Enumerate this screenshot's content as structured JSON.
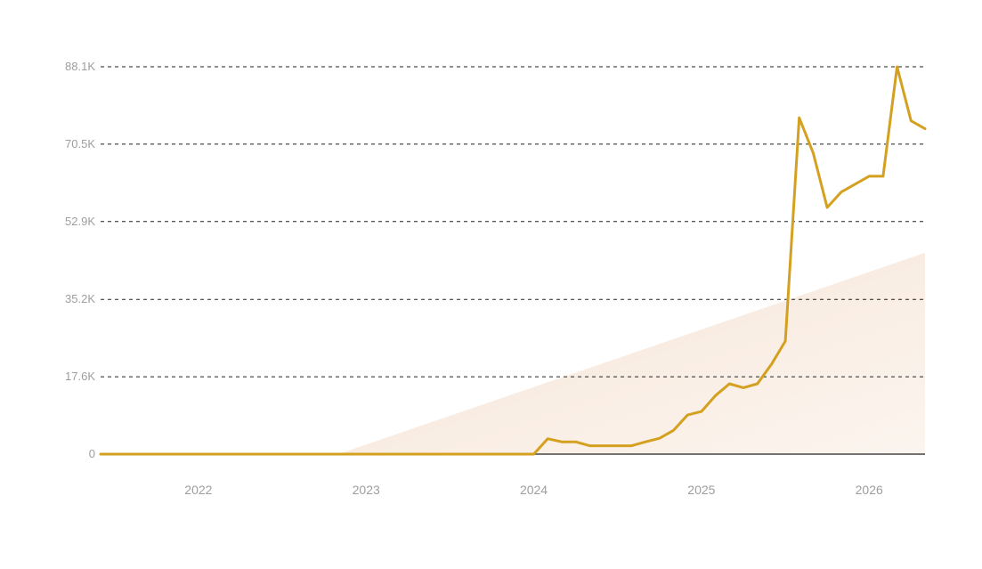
{
  "chart_data": {
    "type": "line",
    "title": "",
    "xlabel": "",
    "ylabel": "",
    "x_range": [
      "2021-06",
      "2026-05"
    ],
    "y_range": [
      0,
      88100
    ],
    "grid": true,
    "legend": "none",
    "y_ticks": [
      {
        "value": 0,
        "label": "0"
      },
      {
        "value": 17600,
        "label": "17.6K"
      },
      {
        "value": 35200,
        "label": "35.2K"
      },
      {
        "value": 52900,
        "label": "52.9K"
      },
      {
        "value": 70500,
        "label": "70.5K"
      },
      {
        "value": 88100,
        "label": "88.1K"
      }
    ],
    "x_ticks": [
      {
        "date": "2022-01",
        "label": "2022"
      },
      {
        "date": "2023-01",
        "label": "2023"
      },
      {
        "date": "2024-01",
        "label": "2024"
      },
      {
        "date": "2025-01",
        "label": "2025"
      },
      {
        "date": "2026-01",
        "label": "2026"
      }
    ],
    "colors": {
      "line": "#d4a020",
      "area": "#f5e1d0",
      "grid": "#222222",
      "tick_text": "#9e9e9e"
    },
    "series": [
      {
        "type": "line",
        "points": [
          {
            "x": "2021-06",
            "y": 0
          },
          {
            "x": "2023-01",
            "y": 0
          },
          {
            "x": "2024-01",
            "y": 0
          },
          {
            "x": "2024-02",
            "y": 3500
          },
          {
            "x": "2024-03",
            "y": 2800
          },
          {
            "x": "2024-04",
            "y": 2800
          },
          {
            "x": "2024-05",
            "y": 1900
          },
          {
            "x": "2024-06",
            "y": 1900
          },
          {
            "x": "2024-07",
            "y": 1900
          },
          {
            "x": "2024-08",
            "y": 1900
          },
          {
            "x": "2024-09",
            "y": 2800
          },
          {
            "x": "2024-10",
            "y": 3600
          },
          {
            "x": "2024-11",
            "y": 5400
          },
          {
            "x": "2024-12",
            "y": 8900
          },
          {
            "x": "2025-01",
            "y": 9700
          },
          {
            "x": "2025-02",
            "y": 13300
          },
          {
            "x": "2025-03",
            "y": 16000
          },
          {
            "x": "2025-04",
            "y": 15100
          },
          {
            "x": "2025-05",
            "y": 16000
          },
          {
            "x": "2025-06",
            "y": 20400
          },
          {
            "x": "2025-07",
            "y": 25700
          },
          {
            "x": "2025-08",
            "y": 76500
          },
          {
            "x": "2025-09",
            "y": 68500
          },
          {
            "x": "2025-10",
            "y": 56100
          },
          {
            "x": "2025-11",
            "y": 59600
          },
          {
            "x": "2025-12",
            "y": 61400
          },
          {
            "x": "2026-01",
            "y": 63200
          },
          {
            "x": "2026-02",
            "y": 63200
          },
          {
            "x": "2026-03",
            "y": 88100
          },
          {
            "x": "2026-04",
            "y": 75800
          },
          {
            "x": "2026-05",
            "y": 74000
          }
        ]
      },
      {
        "type": "area",
        "points": [
          {
            "x": "2022-11",
            "y": 0
          },
          {
            "x": "2026-05",
            "y": 45800
          }
        ]
      }
    ]
  }
}
